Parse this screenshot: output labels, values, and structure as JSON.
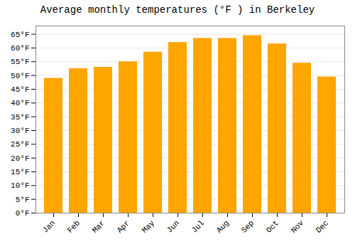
{
  "chart_data": {
    "type": "bar",
    "title": "Average monthly temperatures (°F ) in Berkeley",
    "categories": [
      "Jan",
      "Feb",
      "Mar",
      "Apr",
      "May",
      "Jun",
      "Jul",
      "Aug",
      "Sep",
      "Oct",
      "Nov",
      "Dec"
    ],
    "values": [
      49,
      52.5,
      53,
      55,
      58.5,
      62,
      63.5,
      63.5,
      64.5,
      61.5,
      54.5,
      49.5
    ],
    "color": "#FFA500",
    "ylim": [
      0,
      68
    ],
    "yticks": [
      {
        "value": 0,
        "label": "0°F"
      },
      {
        "value": 5,
        "label": "5°F"
      },
      {
        "value": 10,
        "label": "10°F"
      },
      {
        "value": 15,
        "label": "15°F"
      },
      {
        "value": 20,
        "label": "20°F"
      },
      {
        "value": 25,
        "label": "25°F"
      },
      {
        "value": 30,
        "label": "30°F"
      },
      {
        "value": 35,
        "label": "35°F"
      },
      {
        "value": 40,
        "label": "40°F"
      },
      {
        "value": 45,
        "label": "45°F"
      },
      {
        "value": 50,
        "label": "50°F"
      },
      {
        "value": 55,
        "label": "55°F"
      },
      {
        "value": 60,
        "label": "60°F"
      },
      {
        "value": 65,
        "label": "65°F"
      }
    ],
    "grid": true
  }
}
